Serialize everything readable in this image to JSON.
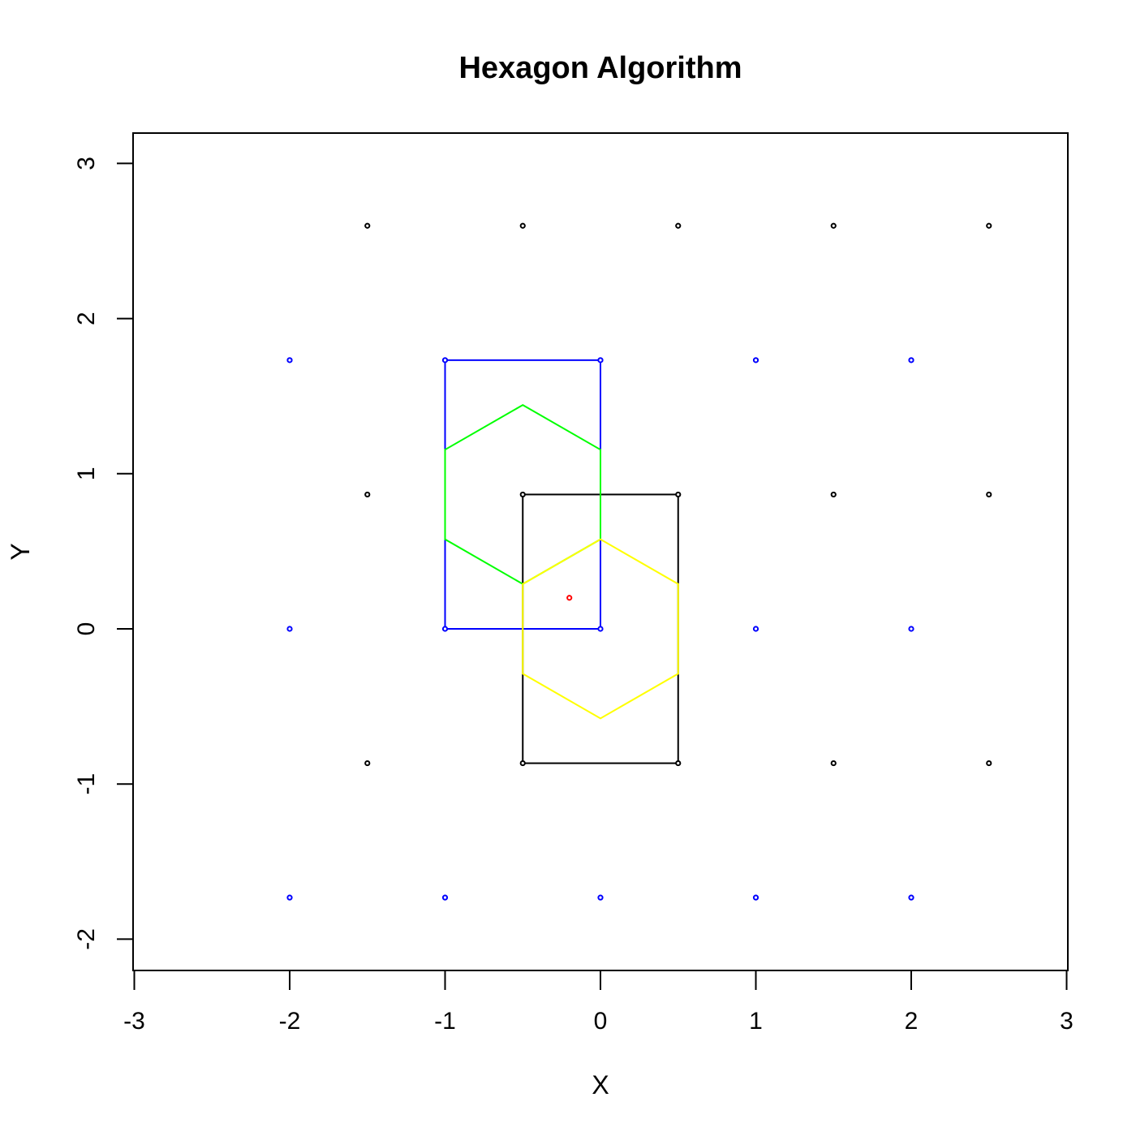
{
  "chart_data": {
    "type": "scatter",
    "title": "Hexagon Algorithm",
    "xlabel": "X",
    "ylabel": "Y",
    "xlim": [
      -3,
      3
    ],
    "ylim": [
      -2.2,
      3.2
    ],
    "xticks": [
      -3,
      -2,
      -1,
      0,
      1,
      2,
      3
    ],
    "yticks": [
      -2,
      -1,
      0,
      1,
      2,
      3
    ],
    "grid": false,
    "colors": {
      "black_lattice": "#000000",
      "blue_lattice": "#0000ff",
      "query": "#ff0000",
      "green_hexagon": "#00ff00",
      "yellow_hexagon": "#ffff00"
    },
    "points": {
      "black": [
        [
          -1.5,
          2.598
        ],
        [
          -0.5,
          2.598
        ],
        [
          0.5,
          2.598
        ],
        [
          1.5,
          2.598
        ],
        [
          2.5,
          2.598
        ],
        [
          -1.5,
          0.866
        ],
        [
          -0.5,
          0.866
        ],
        [
          0.5,
          0.866
        ],
        [
          1.5,
          0.866
        ],
        [
          2.5,
          0.866
        ],
        [
          -1.5,
          -0.866
        ],
        [
          -0.5,
          -0.866
        ],
        [
          0.5,
          -0.866
        ],
        [
          1.5,
          -0.866
        ],
        [
          2.5,
          -0.866
        ]
      ],
      "blue": [
        [
          -2,
          1.732
        ],
        [
          -1,
          1.732
        ],
        [
          0,
          1.732
        ],
        [
          1,
          1.732
        ],
        [
          2,
          1.732
        ],
        [
          -2,
          0
        ],
        [
          -1,
          0
        ],
        [
          0,
          0
        ],
        [
          1,
          0
        ],
        [
          2,
          0
        ],
        [
          -2,
          -1.732
        ],
        [
          -1,
          -1.732
        ],
        [
          0,
          -1.732
        ],
        [
          1,
          -1.732
        ],
        [
          2,
          -1.732
        ]
      ],
      "red": [
        [
          -0.2,
          0.2
        ]
      ]
    },
    "rectangles": [
      {
        "color": "blue",
        "x": [
          -1,
          0
        ],
        "y": [
          0,
          1.732
        ]
      },
      {
        "color": "black",
        "x": [
          -0.5,
          0.5
        ],
        "y": [
          -0.866,
          0.866
        ]
      }
    ],
    "hexagons": [
      {
        "color": "green",
        "vertices": [
          [
            -0.5,
            1.443
          ],
          [
            0,
            1.155
          ],
          [
            0,
            0.577
          ],
          [
            -0.5,
            0.289
          ],
          [
            -1,
            0.577
          ],
          [
            -1,
            1.155
          ]
        ]
      },
      {
        "color": "yellow",
        "vertices": [
          [
            0,
            0.577
          ],
          [
            0.5,
            0.289
          ],
          [
            0.5,
            -0.289
          ],
          [
            0,
            -0.577
          ],
          [
            -0.5,
            -0.289
          ],
          [
            -0.5,
            0.289
          ]
        ]
      }
    ]
  }
}
